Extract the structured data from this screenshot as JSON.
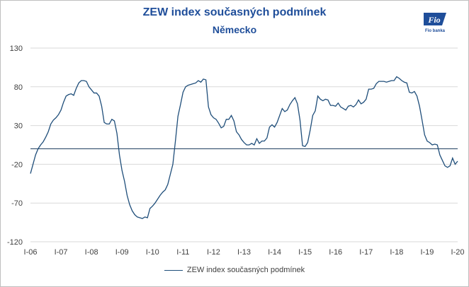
{
  "chart_data": {
    "type": "line",
    "title": "ZEW index současných podmínek",
    "subtitle": "Německo",
    "ylim": [
      -120,
      130
    ],
    "y_ticks": [
      130,
      80,
      30,
      -20,
      -70,
      -120
    ],
    "x_tick_labels": [
      "I-06",
      "I-07",
      "I-08",
      "I-09",
      "I-10",
      "I-11",
      "I-12",
      "I-13",
      "I-14",
      "I-15",
      "I-16",
      "I-17",
      "I-18",
      "I-19",
      "I-20"
    ],
    "x_start": "2006-01",
    "reference_line_y": 0,
    "grid": true,
    "legend_position": "bottom",
    "color": "#1f4e7a",
    "series": [
      {
        "name": "ZEW index současných podmínek",
        "values": [
          -32,
          -20,
          -8,
          0,
          5,
          9,
          15,
          22,
          32,
          37,
          40,
          44,
          50,
          60,
          68,
          70,
          71,
          69,
          78,
          85,
          88,
          88,
          87,
          80,
          76,
          72,
          72,
          68,
          55,
          34,
          32,
          32,
          38,
          36,
          20,
          -8,
          -28,
          -42,
          -60,
          -72,
          -80,
          -85,
          -88,
          -89,
          -90,
          -88,
          -89,
          -77,
          -74,
          -70,
          -65,
          -60,
          -56,
          -53,
          -46,
          -33,
          -20,
          10,
          42,
          57,
          73,
          80,
          82,
          83,
          84,
          85,
          88,
          86,
          90,
          89,
          54,
          44,
          40,
          38,
          33,
          27,
          29,
          38,
          38,
          43,
          36,
          22,
          18,
          12,
          8,
          5,
          5,
          7,
          5,
          13,
          7,
          10,
          10,
          14,
          28,
          31,
          28,
          34,
          43,
          52,
          48,
          50,
          57,
          62,
          66,
          58,
          37,
          4,
          3,
          8,
          24,
          43,
          49,
          68,
          64,
          62,
          64,
          63,
          56,
          56,
          55,
          59,
          54,
          52,
          50,
          55,
          56,
          54,
          57,
          63,
          58,
          60,
          64,
          77,
          77,
          78,
          84,
          87,
          87,
          87,
          86,
          87,
          88,
          88,
          93,
          91,
          88,
          86,
          85,
          73,
          72,
          74,
          68,
          55,
          37,
          18,
          10,
          8,
          5,
          6,
          5,
          -8,
          -15,
          -22,
          -24,
          -22,
          -12,
          -20,
          -16
        ]
      }
    ]
  },
  "legend": {
    "label": "ZEW index současných podmínek"
  },
  "logo": {
    "brand": "Fio",
    "caption": "Fio banka"
  }
}
